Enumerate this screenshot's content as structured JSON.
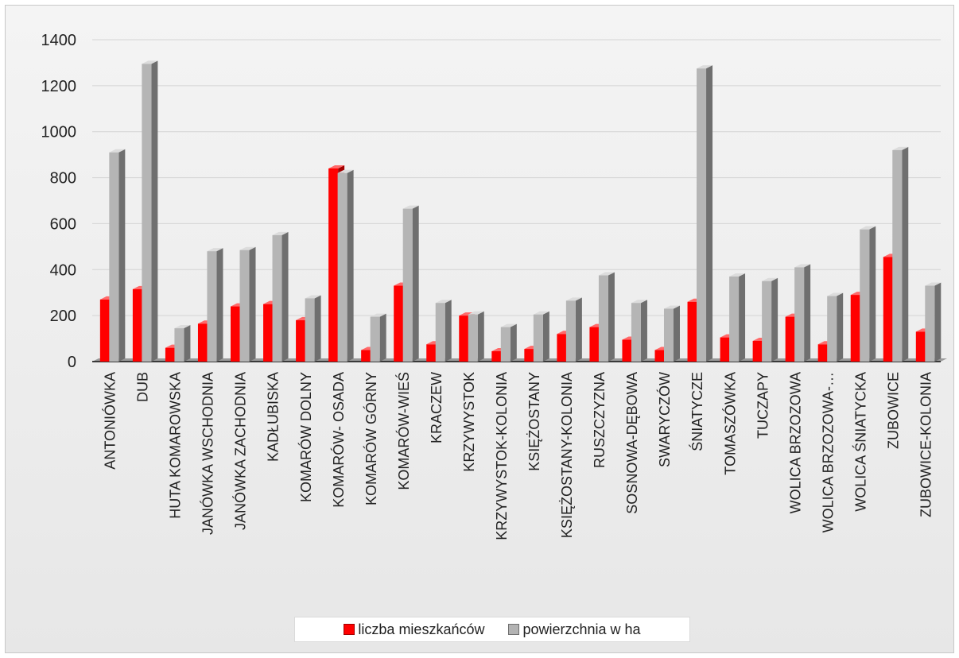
{
  "chart_data": {
    "type": "bar",
    "categories": [
      "ANTONIÓWKA",
      "DUB",
      "HUTA KOMAROWSKA",
      "JANÓWKA WSCHODNIA",
      "JANÓWKA ZACHODNIA",
      "KADŁUBISKA",
      "KOMARÓW DOLNY",
      "KOMARÓW- OSADA",
      "KOMARÓW GÓRNY",
      "KOMARÓW-WIEŚ",
      "KRACZEW",
      "KRZYWYSTOK",
      "KRZYWYSTOK-KOLONIA",
      "KSIĘŻOSTANY",
      "KSIĘŻOSTANY-KOLONIA",
      "RUSZCZYZNA",
      "SOSNOWA-DĘBOWA",
      "SWARYCZÓW",
      "ŚNIATYCZE",
      "TOMASZÓWKA",
      "TUCZAPY",
      "WOLICA BRZOZOWA",
      "WOLICA BRZOZOWA-…",
      "WOLICA ŚNIATYCKA",
      "ZUBOWICE",
      "ZUBOWICE-KOLONIA"
    ],
    "series": [
      {
        "name": "liczba mieszkańców",
        "color": "#ff0000",
        "values": [
          270,
          315,
          60,
          165,
          240,
          250,
          180,
          840,
          50,
          330,
          75,
          200,
          45,
          55,
          120,
          150,
          95,
          50,
          260,
          105,
          90,
          195,
          75,
          290,
          455,
          130
        ]
      },
      {
        "name": "powierzchnia w ha",
        "color": "#b3b3b3",
        "values": [
          910,
          1295,
          145,
          480,
          485,
          550,
          275,
          820,
          195,
          665,
          255,
          205,
          150,
          205,
          265,
          375,
          255,
          230,
          1275,
          370,
          350,
          410,
          285,
          575,
          920,
          330
        ]
      }
    ],
    "yticks": [
      0,
      200,
      400,
      600,
      800,
      1000,
      1200,
      1400
    ],
    "ylim": [
      0,
      1400
    ],
    "legend_position": "bottom",
    "grid": true
  }
}
